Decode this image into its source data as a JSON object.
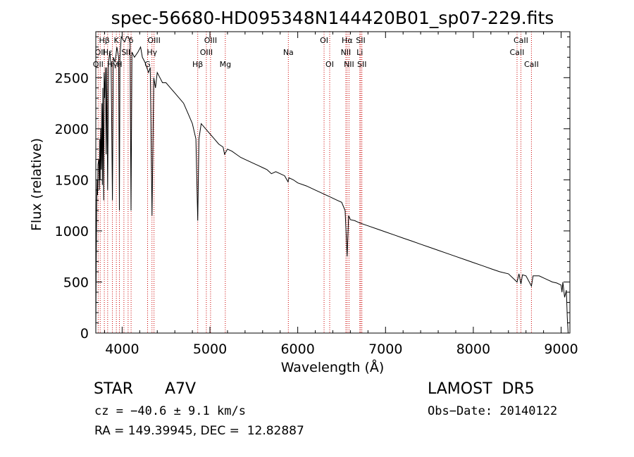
{
  "chart_data": {
    "type": "line",
    "title": "spec-56680-HD095348N144420B01_sp07-229.fits",
    "xlabel": "Wavelength (Å)",
    "ylabel": "Flux (relative)",
    "xlim": [
      3700,
      9100
    ],
    "ylim": [
      0,
      2950
    ],
    "x_ticks": [
      4000,
      5000,
      6000,
      7000,
      8000,
      9000
    ],
    "y_ticks": [
      0,
      500,
      1000,
      1500,
      2000,
      2500
    ],
    "grid": false,
    "series": [
      {
        "color": "#000000",
        "points": [
          [
            3700,
            0
          ],
          [
            3702,
            250
          ],
          [
            3705,
            700
          ],
          [
            3710,
            1250
          ],
          [
            3715,
            1500
          ],
          [
            3720,
            1350
          ],
          [
            3725,
            1650
          ],
          [
            3735,
            1700
          ],
          [
            3740,
            1400
          ],
          [
            3745,
            1900
          ],
          [
            3750,
            1500
          ],
          [
            3755,
            2000
          ],
          [
            3762,
            1600
          ],
          [
            3770,
            2250
          ],
          [
            3775,
            1450
          ],
          [
            3780,
            2400
          ],
          [
            3790,
            1300
          ],
          [
            3795,
            2550
          ],
          [
            3800,
            2300
          ],
          [
            3810,
            2600
          ],
          [
            3818,
            1750
          ],
          [
            3825,
            2600
          ],
          [
            3835,
            1400
          ],
          [
            3845,
            2650
          ],
          [
            3860,
            2750
          ],
          [
            3875,
            2600
          ],
          [
            3889,
            1300
          ],
          [
            3900,
            2700
          ],
          [
            3920,
            2650
          ],
          [
            3940,
            2800
          ],
          [
            3960,
            2700
          ],
          [
            3969,
            1200
          ],
          [
            3975,
            2700
          ],
          [
            3990,
            2900
          ],
          [
            4010,
            2870
          ],
          [
            4030,
            2850
          ],
          [
            4050,
            2900
          ],
          [
            4070,
            2900
          ],
          [
            4090,
            2850
          ],
          [
            4101,
            1200
          ],
          [
            4112,
            2750
          ],
          [
            4140,
            2700
          ],
          [
            4180,
            2750
          ],
          [
            4210,
            2800
          ],
          [
            4230,
            2700
          ],
          [
            4260,
            2650
          ],
          [
            4300,
            2550
          ],
          [
            4320,
            2600
          ],
          [
            4340,
            1150
          ],
          [
            4360,
            2500
          ],
          [
            4380,
            2400
          ],
          [
            4400,
            2550
          ],
          [
            4430,
            2500
          ],
          [
            4460,
            2450
          ],
          [
            4500,
            2450
          ],
          [
            4550,
            2400
          ],
          [
            4600,
            2350
          ],
          [
            4650,
            2300
          ],
          [
            4700,
            2250
          ],
          [
            4750,
            2150
          ],
          [
            4800,
            2050
          ],
          [
            4840,
            1900
          ],
          [
            4861,
            1100
          ],
          [
            4875,
            1900
          ],
          [
            4900,
            2050
          ],
          [
            4950,
            2000
          ],
          [
            5000,
            1950
          ],
          [
            5050,
            1900
          ],
          [
            5100,
            1850
          ],
          [
            5150,
            1820
          ],
          [
            5167,
            1750
          ],
          [
            5200,
            1800
          ],
          [
            5250,
            1780
          ],
          [
            5300,
            1750
          ],
          [
            5350,
            1720
          ],
          [
            5400,
            1700
          ],
          [
            5450,
            1680
          ],
          [
            5500,
            1660
          ],
          [
            5550,
            1640
          ],
          [
            5600,
            1620
          ],
          [
            5650,
            1600
          ],
          [
            5700,
            1560
          ],
          [
            5750,
            1580
          ],
          [
            5800,
            1560
          ],
          [
            5850,
            1540
          ],
          [
            5890,
            1480
          ],
          [
            5900,
            1520
          ],
          [
            5950,
            1500
          ],
          [
            6000,
            1470
          ],
          [
            6100,
            1440
          ],
          [
            6200,
            1400
          ],
          [
            6300,
            1360
          ],
          [
            6350,
            1340
          ],
          [
            6450,
            1300
          ],
          [
            6500,
            1280
          ],
          [
            6540,
            1200
          ],
          [
            6563,
            750
          ],
          [
            6580,
            1150
          ],
          [
            6600,
            1110
          ],
          [
            6650,
            1100
          ],
          [
            6700,
            1080
          ],
          [
            6800,
            1050
          ],
          [
            6900,
            1020
          ],
          [
            7000,
            990
          ],
          [
            7100,
            960
          ],
          [
            7200,
            930
          ],
          [
            7300,
            900
          ],
          [
            7400,
            870
          ],
          [
            7500,
            840
          ],
          [
            7600,
            810
          ],
          [
            7700,
            780
          ],
          [
            7800,
            750
          ],
          [
            7900,
            720
          ],
          [
            8000,
            690
          ],
          [
            8100,
            660
          ],
          [
            8200,
            630
          ],
          [
            8300,
            600
          ],
          [
            8400,
            580
          ],
          [
            8498,
            500
          ],
          [
            8520,
            580
          ],
          [
            8542,
            480
          ],
          [
            8560,
            570
          ],
          [
            8600,
            560
          ],
          [
            8662,
            460
          ],
          [
            8680,
            560
          ],
          [
            8750,
            560
          ],
          [
            8800,
            540
          ],
          [
            8850,
            520
          ],
          [
            8900,
            500
          ],
          [
            8950,
            490
          ],
          [
            9000,
            470
          ],
          [
            9010,
            400
          ],
          [
            9020,
            500
          ],
          [
            9040,
            350
          ],
          [
            9060,
            420
          ],
          [
            9070,
            150
          ],
          [
            9080,
            0
          ]
        ]
      }
    ],
    "lines": [
      {
        "x": 3727,
        "label": "OII",
        "row": 2
      },
      {
        "x": 3750,
        "label": "OII",
        "row": 1
      },
      {
        "x": 3797,
        "label": "Hβ",
        "row": 0
      },
      {
        "x": 3835,
        "label": "Hε",
        "row": 1
      },
      {
        "x": 3889,
        "label": "Hγ",
        "row": 2
      },
      {
        "x": 3934,
        "label": "K",
        "row": 0
      },
      {
        "x": 3969,
        "label": "H",
        "row": 2
      },
      {
        "x": 4020,
        "label": "S",
        "row": 1
      },
      {
        "x": 4068,
        "label": "II",
        "row": 1
      },
      {
        "x": 4102,
        "label": "δ",
        "row": 0
      },
      {
        "x": 4290,
        "label": "G",
        "row": 2
      },
      {
        "x": 4340,
        "label": "Hγ",
        "row": 1
      },
      {
        "x": 4363,
        "label": "OIII",
        "row": 0
      },
      {
        "x": 4861,
        "label": "Hβ",
        "row": 2
      },
      {
        "x": 4959,
        "label": "OIII",
        "row": 1
      },
      {
        "x": 5007,
        "label": "OIII",
        "row": 0
      },
      {
        "x": 5175,
        "label": "Mg",
        "row": 2
      },
      {
        "x": 5893,
        "label": "Na",
        "row": 1
      },
      {
        "x": 6300,
        "label": "OI",
        "row": 0
      },
      {
        "x": 6364,
        "label": "OI",
        "row": 2
      },
      {
        "x": 6548,
        "label": "NII",
        "row": 1
      },
      {
        "x": 6563,
        "label": "Hα",
        "row": 0
      },
      {
        "x": 6584,
        "label": "NII",
        "row": 2
      },
      {
        "x": 6707,
        "label": "Li",
        "row": 1
      },
      {
        "x": 6717,
        "label": "SII",
        "row": 0
      },
      {
        "x": 6731,
        "label": "SII",
        "row": 2
      },
      {
        "x": 8498,
        "label": "CaII",
        "row": 1
      },
      {
        "x": 8542,
        "label": "CaII",
        "row": 0
      },
      {
        "x": 8662,
        "label": "CaII",
        "row": 2
      }
    ]
  },
  "footer": {
    "object_class": "STAR",
    "subclass": "A7V",
    "survey": "LAMOST  DR5",
    "cz_text": "cz = −40.6 ± 9.1 km/s",
    "obs_date": "Obs−Date: 20140122",
    "coords": "RA = 149.39945, DEC =  12.82887"
  }
}
